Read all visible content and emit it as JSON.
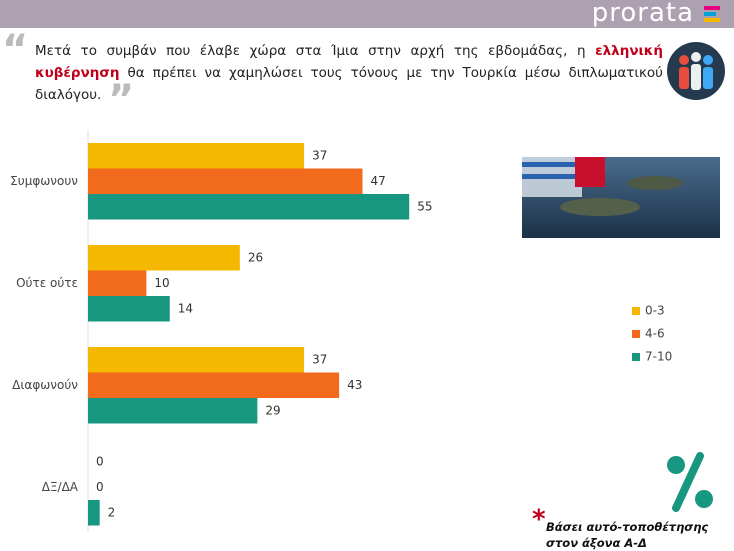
{
  "brand": "prorata",
  "question": {
    "before": "Μετά το συμβάν που έλαβε χώρα στα Ίμια στην αρχή της εβδομάδας, η ",
    "highlight": "ελληνική κυβέρνηση",
    "after": " θα πρέπει να χαμηλώσει τους τόνους με την Τουρκία μέσω διπλωματικού διαλόγου."
  },
  "footnote": "Βάσει αυτό-τοποθέτησης στον άξονα Α-Δ",
  "chart_data": {
    "type": "bar",
    "orientation": "horizontal",
    "categories": [
      "Συμφωνουν",
      "Ούτε ούτε",
      "Διαφωνούν",
      "ΔΞ/ΔΑ"
    ],
    "series": [
      {
        "name": "0-3",
        "color": "#f5b800",
        "values": [
          37,
          26,
          37,
          0
        ]
      },
      {
        "name": "4-6",
        "color": "#f26b1d",
        "values": [
          47,
          10,
          43,
          0
        ]
      },
      {
        "name": "7-10",
        "color": "#17977f",
        "values": [
          55,
          14,
          29,
          2
        ]
      }
    ]
  }
}
